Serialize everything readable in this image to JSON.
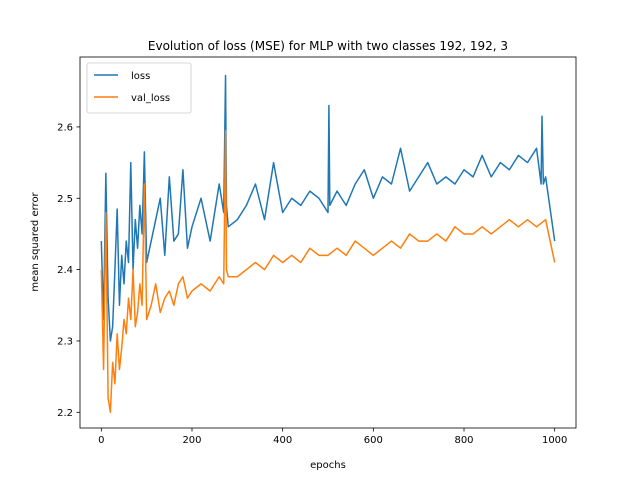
{
  "chart_data": {
    "type": "line",
    "title": "Evolution of loss (MSE) for MLP with two classes 192, 192, 3",
    "xlabel": "epochs",
    "ylabel": "mean squared error",
    "xlim": [
      -47,
      1047
    ],
    "ylim": [
      2.178,
      2.698
    ],
    "xticks": [
      0,
      200,
      400,
      600,
      800,
      1000
    ],
    "yticks": [
      2.2,
      2.3,
      2.4,
      2.5,
      2.6
    ],
    "ytick_labels": [
      "2.2",
      "2.3",
      "2.4",
      "2.5",
      "2.6"
    ],
    "grid": false,
    "legend": {
      "placement": "top-left"
    },
    "colors": {
      "loss": "#1f77b4",
      "val_loss": "#ff7f0e"
    },
    "series": [
      {
        "name": "loss",
        "x": [
          0,
          5,
          10,
          15,
          20,
          25,
          30,
          35,
          40,
          45,
          50,
          55,
          60,
          65,
          70,
          75,
          80,
          85,
          90,
          95,
          100,
          110,
          120,
          130,
          140,
          150,
          160,
          170,
          180,
          190,
          200,
          220,
          240,
          260,
          270,
          274,
          276,
          280,
          300,
          320,
          340,
          360,
          380,
          400,
          420,
          440,
          460,
          480,
          500,
          502,
          504,
          520,
          540,
          560,
          580,
          600,
          620,
          640,
          660,
          680,
          700,
          720,
          740,
          760,
          780,
          800,
          820,
          840,
          860,
          880,
          900,
          920,
          940,
          960,
          970,
          972,
          975,
          980,
          1000
        ],
        "y": [
          2.44,
          2.33,
          2.535,
          2.36,
          2.3,
          2.32,
          2.4,
          2.485,
          2.35,
          2.42,
          2.38,
          2.44,
          2.41,
          2.55,
          2.4,
          2.47,
          2.43,
          2.49,
          2.45,
          2.565,
          2.41,
          2.44,
          2.47,
          2.5,
          2.42,
          2.53,
          2.44,
          2.45,
          2.54,
          2.43,
          2.46,
          2.5,
          2.44,
          2.52,
          2.48,
          2.672,
          2.49,
          2.46,
          2.47,
          2.49,
          2.52,
          2.47,
          2.55,
          2.48,
          2.5,
          2.49,
          2.51,
          2.5,
          2.48,
          2.63,
          2.49,
          2.51,
          2.49,
          2.52,
          2.54,
          2.5,
          2.53,
          2.52,
          2.57,
          2.51,
          2.53,
          2.55,
          2.52,
          2.53,
          2.52,
          2.54,
          2.53,
          2.56,
          2.53,
          2.55,
          2.54,
          2.56,
          2.55,
          2.57,
          2.52,
          2.615,
          2.52,
          2.53,
          2.44
        ]
      },
      {
        "name": "val_loss",
        "x": [
          0,
          5,
          10,
          15,
          20,
          25,
          30,
          35,
          40,
          45,
          50,
          55,
          60,
          65,
          70,
          75,
          80,
          85,
          90,
          95,
          100,
          110,
          120,
          130,
          140,
          150,
          160,
          170,
          180,
          190,
          200,
          220,
          240,
          260,
          270,
          274,
          276,
          280,
          300,
          320,
          340,
          360,
          380,
          400,
          420,
          440,
          460,
          480,
          500,
          520,
          540,
          560,
          580,
          600,
          620,
          640,
          660,
          680,
          700,
          720,
          740,
          760,
          780,
          800,
          820,
          840,
          860,
          880,
          900,
          920,
          940,
          960,
          980,
          1000
        ],
        "y": [
          2.4,
          2.26,
          2.48,
          2.22,
          2.2,
          2.27,
          2.24,
          2.31,
          2.26,
          2.29,
          2.33,
          2.31,
          2.36,
          2.33,
          2.4,
          2.32,
          2.34,
          2.38,
          2.35,
          2.52,
          2.33,
          2.35,
          2.38,
          2.34,
          2.36,
          2.37,
          2.35,
          2.38,
          2.39,
          2.36,
          2.37,
          2.38,
          2.37,
          2.39,
          2.38,
          2.595,
          2.4,
          2.39,
          2.39,
          2.4,
          2.41,
          2.4,
          2.42,
          2.41,
          2.42,
          2.41,
          2.43,
          2.42,
          2.42,
          2.43,
          2.42,
          2.44,
          2.43,
          2.42,
          2.43,
          2.44,
          2.43,
          2.45,
          2.44,
          2.44,
          2.45,
          2.44,
          2.46,
          2.45,
          2.45,
          2.46,
          2.45,
          2.46,
          2.47,
          2.46,
          2.47,
          2.46,
          2.47,
          2.41
        ]
      }
    ]
  }
}
